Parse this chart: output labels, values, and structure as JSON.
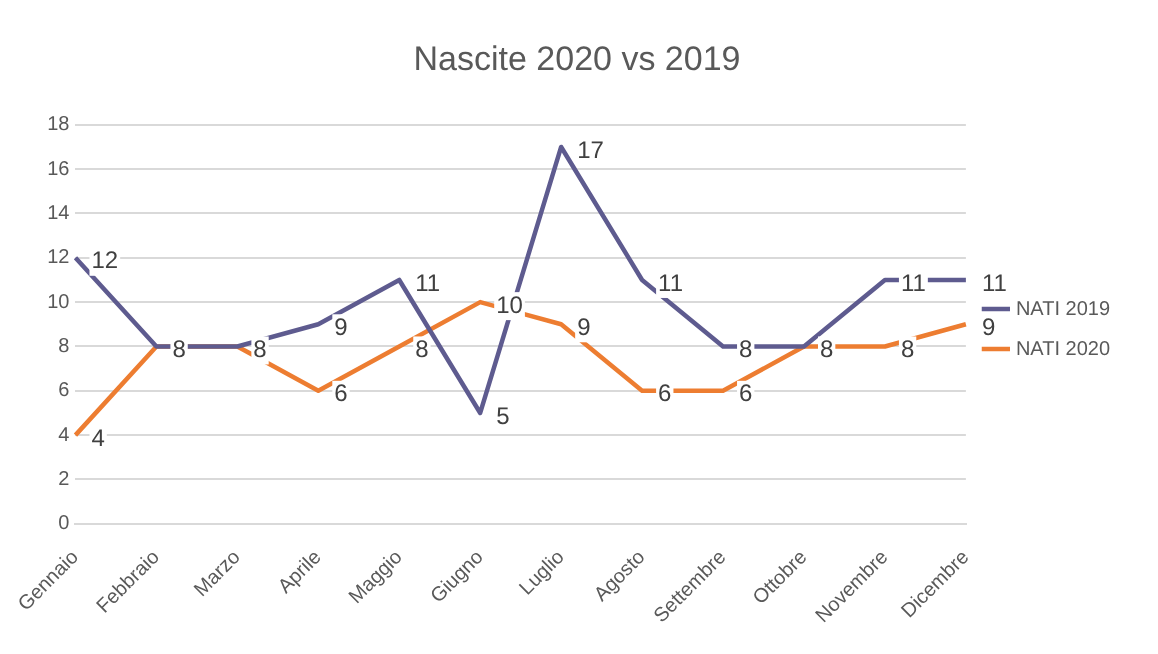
{
  "chart_data": {
    "type": "line",
    "title": "Nascite 2020 vs 2019",
    "categories": [
      "Gennaio",
      "Febbraio",
      "Marzo",
      "Aprile",
      "Maggio",
      "Giugno",
      "Luglio",
      "Agosto",
      "Settembre",
      "Ottobre",
      "Novembre",
      "Dicembre"
    ],
    "series": [
      {
        "name": "NATI 2019",
        "color": "#5e5b8f",
        "values": [
          12,
          8,
          8,
          9,
          11,
          5,
          17,
          11,
          8,
          8,
          11,
          11
        ],
        "value_labels": [
          "12",
          "8",
          "8",
          "9",
          "11",
          "5",
          "17",
          "11",
          "8",
          "8",
          "11",
          "11"
        ]
      },
      {
        "name": "NATI 2020",
        "color": "#ed7d31",
        "values": [
          4,
          8,
          8,
          6,
          8,
          10,
          9,
          6,
          6,
          8,
          8,
          9
        ],
        "value_labels": [
          "4",
          null,
          null,
          "6",
          "8",
          "10",
          "9",
          "6",
          "6",
          null,
          "8",
          "9"
        ]
      }
    ],
    "ylim": [
      0,
      18
    ],
    "yticks": [
      0,
      2,
      4,
      6,
      8,
      10,
      12,
      14,
      16,
      18
    ],
    "grid": "y",
    "legend": "right",
    "marker": "none",
    "line_style": "solid"
  }
}
